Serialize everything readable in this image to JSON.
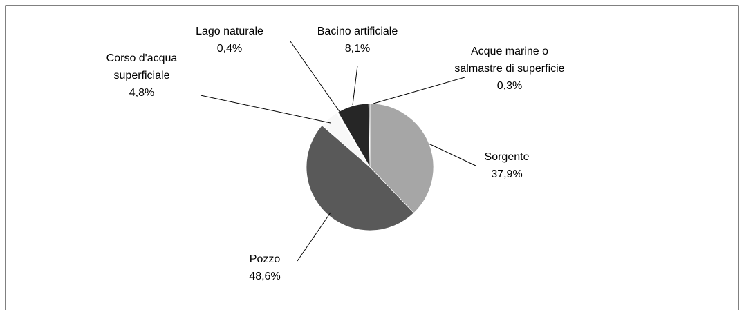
{
  "chart_data": {
    "type": "pie",
    "categories": [
      "Sorgente",
      "Pozzo",
      "Corso d'acqua superficiale",
      "Lago naturale",
      "Bacino artificiale",
      "Acque marine o salmastre di superficie"
    ],
    "values": [
      37.9,
      48.6,
      4.8,
      0.4,
      8.1,
      0.3
    ],
    "value_labels": [
      "37,9%",
      "48,6%",
      "4,8%",
      "0,4%",
      "8,1%",
      "0,3%"
    ],
    "colors": [
      "#a6a6a6",
      "#595959",
      "#f8f8f8",
      "#ffffff",
      "#262626",
      "#808080"
    ]
  }
}
